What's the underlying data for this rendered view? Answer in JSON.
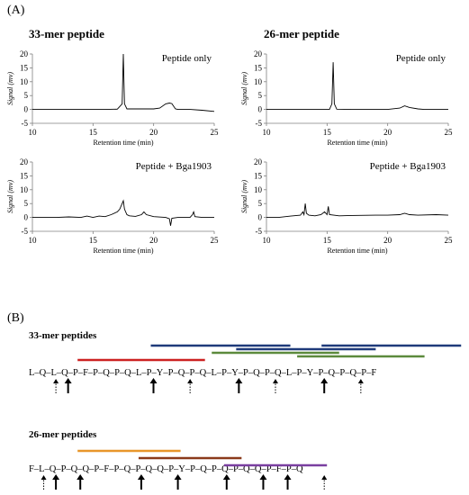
{
  "panel_a": {
    "label": "(A)",
    "title_left": "33-mer peptide",
    "title_right": "26-mer peptide"
  },
  "panel_b": {
    "label": "(B)"
  },
  "chart_data": [
    {
      "type": "line",
      "legend": "Peptide only",
      "xlabel": "Retention time (min)",
      "ylabel": "Signal (mv)",
      "xlim": [
        10,
        25
      ],
      "ylim": [
        -5,
        20
      ],
      "xticks": [
        10,
        15,
        20,
        25
      ],
      "yticks": [
        -5,
        0,
        5,
        10,
        15,
        20
      ],
      "series": [
        {
          "x": [
            10,
            12,
            14,
            16,
            17.0,
            17.4,
            17.5,
            17.6,
            17.8,
            18.5,
            20,
            20.5,
            21,
            21.3,
            21.5,
            21.8,
            22,
            22.5,
            23,
            24,
            25
          ],
          "y": [
            0,
            0,
            0,
            0,
            0.1,
            2,
            20,
            2,
            0.2,
            0.2,
            0.2,
            0.5,
            2,
            2.3,
            2.1,
            0.2,
            0,
            0,
            0,
            -0.3,
            -0.7
          ]
        }
      ]
    },
    {
      "type": "line",
      "legend": "Peptide only",
      "xlabel": "Retention time (min)",
      "ylabel": "Signal (mv)",
      "xlim": [
        10,
        25
      ],
      "ylim": [
        -5,
        20
      ],
      "xticks": [
        10,
        15,
        20,
        25
      ],
      "yticks": [
        -5,
        0,
        5,
        10,
        15,
        20
      ],
      "series": [
        {
          "x": [
            10,
            12,
            14,
            15.2,
            15.4,
            15.5,
            15.6,
            15.8,
            17,
            19,
            20,
            21,
            21.4,
            21.8,
            22.5,
            23,
            24,
            25
          ],
          "y": [
            0,
            0,
            0,
            0,
            2,
            17,
            2,
            0.1,
            0,
            0,
            0,
            0.5,
            1.3,
            0.7,
            0.2,
            0,
            0,
            0
          ]
        }
      ]
    },
    {
      "type": "line",
      "legend": "Peptide + Bga1903",
      "xlabel": "Retention time (min)",
      "ylabel": "Signal (mv)",
      "xlim": [
        10,
        25
      ],
      "ylim": [
        -5,
        20
      ],
      "xticks": [
        10,
        15,
        20,
        25
      ],
      "yticks": [
        -5,
        0,
        5,
        10,
        15,
        20
      ],
      "series": [
        {
          "x": [
            10,
            11,
            12,
            13,
            14,
            14.5,
            15,
            15.5,
            16,
            16.5,
            17,
            17.2,
            17.4,
            17.5,
            17.6,
            17.8,
            18,
            18.5,
            19,
            19.2,
            19.4,
            20,
            21,
            21.3,
            21.4,
            21.5,
            22,
            23,
            23.2,
            23.3,
            23.4,
            24,
            25
          ],
          "y": [
            0,
            0,
            0,
            0.2,
            0,
            0.5,
            0,
            0.5,
            0.3,
            1,
            2,
            3,
            5,
            6,
            3,
            1,
            0.6,
            0.4,
            1,
            2,
            1,
            0.3,
            0,
            -0.5,
            -3,
            -0.3,
            0,
            0,
            1,
            2,
            0.3,
            0,
            0
          ]
        }
      ]
    },
    {
      "type": "line",
      "legend": "Peptide + Bga1903",
      "xlabel": "Retention time (min)",
      "ylabel": "Signal (mv)",
      "xlim": [
        10,
        25
      ],
      "ylim": [
        -5,
        20
      ],
      "xticks": [
        10,
        15,
        20,
        25
      ],
      "yticks": [
        -5,
        0,
        5,
        10,
        15,
        20
      ],
      "series": [
        {
          "x": [
            10,
            11,
            12,
            12.8,
            13,
            13.1,
            13.2,
            13.3,
            13.5,
            14,
            14.5,
            14.8,
            15,
            15.1,
            15.2,
            16,
            17,
            19,
            20,
            21,
            21.4,
            21.8,
            22.5,
            24,
            25
          ],
          "y": [
            0,
            0,
            0.5,
            0.8,
            2,
            1,
            5,
            1.5,
            0.8,
            0.6,
            1,
            2,
            1,
            4,
            1,
            0.6,
            0.7,
            0.8,
            0.8,
            1,
            1.5,
            1,
            0.8,
            1,
            0.8
          ]
        }
      ]
    }
  ],
  "sequence_33": {
    "title": "33-mer peptides",
    "text": "L–Q–L–Q–P–F–P–Q–P–Q–L–P–Y–P–Q–P–Q–L–P–Y–P–Q–P–Q–L–P–Y–P–Q–P–Q–P–F",
    "bars": [
      {
        "color": "#1f3a7a",
        "start": 10,
        "end": 21
      },
      {
        "color": "#1f3a7a",
        "start": 17,
        "end": 28
      },
      {
        "color": "#1f3a7a",
        "start": 24,
        "end": 35
      },
      {
        "color": "#5c8a3c",
        "start": 15,
        "end": 25
      },
      {
        "color": "#5c8a3c",
        "start": 22,
        "end": 32
      },
      {
        "color": "#cc2222",
        "start": 4,
        "end": 14
      }
    ],
    "solid_arrows": [
      3,
      10,
      17,
      24
    ],
    "dotted_arrows": [
      2,
      13,
      20,
      27
    ]
  },
  "sequence_26": {
    "title": "26-mer peptides",
    "text": "F–L–Q–P–Q–Q–P–F–P–Q–P–Q–Q–P–Y–P–Q–P–Q–P–Q–Q–P–F–P–Q",
    "bars": [
      {
        "color": "#e8962a",
        "start": 4,
        "end": 12
      },
      {
        "color": "#8b3a1a",
        "start": 9,
        "end": 17
      },
      {
        "color": "#7a3fa0",
        "start": 16,
        "end": 24
      }
    ],
    "solid_arrows": [
      2,
      4,
      9,
      12,
      16,
      19,
      21
    ],
    "dotted_arrows": [
      1,
      24
    ]
  }
}
